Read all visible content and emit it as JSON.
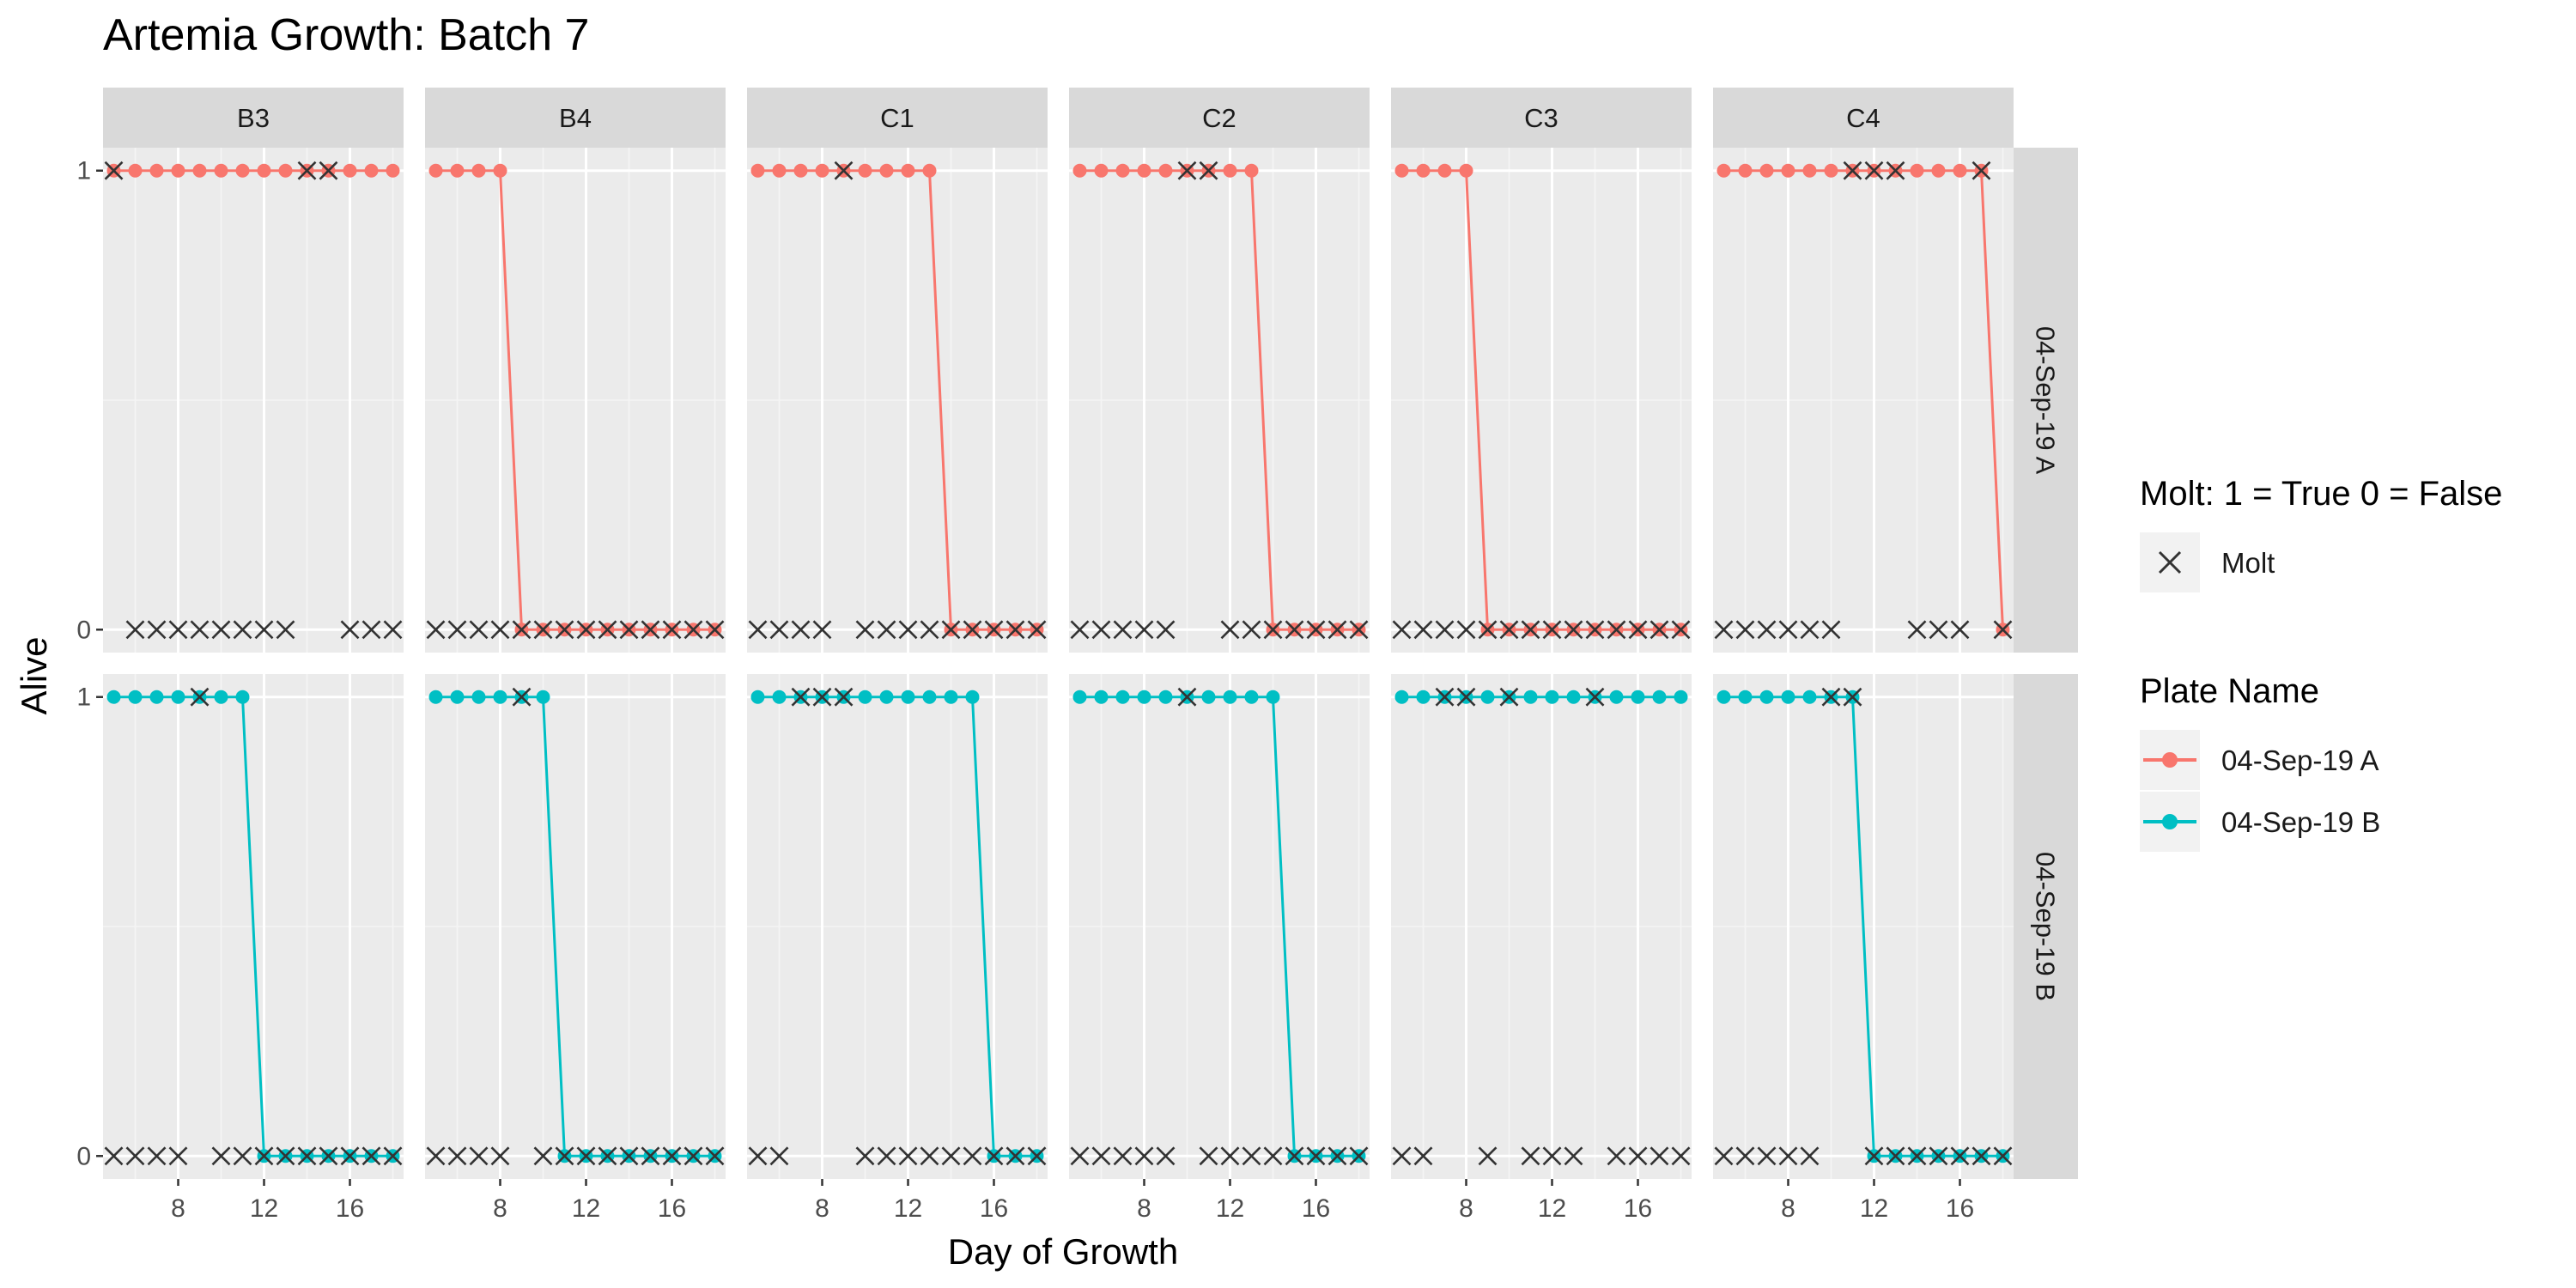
{
  "chart_data": {
    "type": "line",
    "title": "Artemia Growth: Batch 7",
    "xlabel": "Day of Growth",
    "ylabel": "Alive",
    "xlim": [
      4.5,
      18.5
    ],
    "ylim": [
      -0.05,
      1.05
    ],
    "x_ticks": [
      8,
      12,
      16
    ],
    "y_ticks": [
      0,
      1
    ],
    "columns": [
      "B3",
      "B4",
      "C1",
      "C2",
      "C3",
      "C4"
    ],
    "rows": [
      "04-Sep-19 A",
      "04-Sep-19 B"
    ],
    "days": [
      5,
      6,
      7,
      8,
      9,
      10,
      11,
      12,
      13,
      14,
      15,
      16,
      17,
      18
    ],
    "series_colors": {
      "04-Sep-19 A": "#F8766D",
      "04-Sep-19 B": "#00BFC4"
    },
    "legend_position": "right",
    "grid": true,
    "legend": {
      "molt_title": "Molt: 1 = True 0 = False",
      "molt_label": "Molt",
      "plate_title": "Plate Name",
      "plate_items": [
        "04-Sep-19 A",
        "04-Sep-19 B"
      ]
    },
    "panels": [
      {
        "row": "04-Sep-19 A",
        "col": "B3",
        "alive": [
          1,
          1,
          1,
          1,
          1,
          1,
          1,
          1,
          1,
          1,
          1,
          1,
          1,
          1
        ],
        "molt_days": [
          5,
          14,
          15
        ],
        "molt_zero_days": [
          6,
          7,
          8,
          9,
          10,
          11,
          12,
          13,
          16,
          17,
          18
        ]
      },
      {
        "row": "04-Sep-19 A",
        "col": "B4",
        "alive": [
          1,
          1,
          1,
          1,
          0,
          0,
          0,
          0,
          0,
          0,
          0,
          0,
          0,
          0
        ],
        "molt_days": [],
        "molt_zero_days": [
          5,
          6,
          7,
          8,
          9,
          10,
          11,
          12,
          13,
          14,
          15,
          16,
          17,
          18
        ]
      },
      {
        "row": "04-Sep-19 A",
        "col": "C1",
        "alive": [
          1,
          1,
          1,
          1,
          1,
          1,
          1,
          1,
          1,
          0,
          0,
          0,
          0,
          0
        ],
        "molt_days": [
          9
        ],
        "molt_zero_days": [
          5,
          6,
          7,
          8,
          10,
          11,
          12,
          13,
          14,
          15,
          16,
          17,
          18
        ]
      },
      {
        "row": "04-Sep-19 A",
        "col": "C2",
        "alive": [
          1,
          1,
          1,
          1,
          1,
          1,
          1,
          1,
          1,
          0,
          0,
          0,
          0,
          0
        ],
        "molt_days": [
          10,
          11
        ],
        "molt_zero_days": [
          5,
          6,
          7,
          8,
          9,
          12,
          13,
          14,
          15,
          16,
          17,
          18
        ]
      },
      {
        "row": "04-Sep-19 A",
        "col": "C3",
        "alive": [
          1,
          1,
          1,
          1,
          0,
          0,
          0,
          0,
          0,
          0,
          0,
          0,
          0,
          0
        ],
        "molt_days": [],
        "molt_zero_days": [
          5,
          6,
          7,
          8,
          9,
          10,
          11,
          12,
          13,
          14,
          15,
          16,
          17,
          18
        ]
      },
      {
        "row": "04-Sep-19 A",
        "col": "C4",
        "alive": [
          1,
          1,
          1,
          1,
          1,
          1,
          1,
          1,
          1,
          1,
          1,
          1,
          1,
          0
        ],
        "molt_days": [
          11,
          12,
          13,
          17
        ],
        "molt_zero_days": [
          5,
          6,
          7,
          8,
          9,
          10,
          14,
          15,
          16,
          18
        ]
      },
      {
        "row": "04-Sep-19 B",
        "col": "B3",
        "alive": [
          1,
          1,
          1,
          1,
          1,
          1,
          1,
          0,
          0,
          0,
          0,
          0,
          0,
          0
        ],
        "molt_days": [
          9
        ],
        "molt_zero_days": [
          5,
          6,
          7,
          8,
          10,
          11,
          12,
          13,
          14,
          15,
          16,
          17,
          18
        ]
      },
      {
        "row": "04-Sep-19 B",
        "col": "B4",
        "alive": [
          1,
          1,
          1,
          1,
          1,
          1,
          0,
          0,
          0,
          0,
          0,
          0,
          0,
          0
        ],
        "molt_days": [
          9
        ],
        "molt_zero_days": [
          5,
          6,
          7,
          8,
          10,
          11,
          12,
          13,
          14,
          15,
          16,
          17,
          18
        ]
      },
      {
        "row": "04-Sep-19 B",
        "col": "C1",
        "alive": [
          1,
          1,
          1,
          1,
          1,
          1,
          1,
          1,
          1,
          1,
          1,
          0,
          0,
          0
        ],
        "molt_days": [
          7,
          8,
          9
        ],
        "molt_zero_days": [
          5,
          6,
          10,
          11,
          12,
          13,
          14,
          15,
          16,
          17,
          18
        ]
      },
      {
        "row": "04-Sep-19 B",
        "col": "C2",
        "alive": [
          1,
          1,
          1,
          1,
          1,
          1,
          1,
          1,
          1,
          1,
          0,
          0,
          0,
          0
        ],
        "molt_days": [
          10
        ],
        "molt_zero_days": [
          5,
          6,
          7,
          8,
          9,
          11,
          12,
          13,
          14,
          15,
          16,
          17,
          18
        ]
      },
      {
        "row": "04-Sep-19 B",
        "col": "C3",
        "alive": [
          1,
          1,
          1,
          1,
          1,
          1,
          1,
          1,
          1,
          1,
          1,
          1,
          1,
          1
        ],
        "molt_days": [
          7,
          8,
          10,
          14
        ],
        "molt_zero_days": [
          5,
          6,
          9,
          11,
          12,
          13,
          15,
          16,
          17,
          18
        ]
      },
      {
        "row": "04-Sep-19 B",
        "col": "C4",
        "alive": [
          1,
          1,
          1,
          1,
          1,
          1,
          1,
          0,
          0,
          0,
          0,
          0,
          0,
          0
        ],
        "molt_days": [
          10,
          11
        ],
        "molt_zero_days": [
          5,
          6,
          7,
          8,
          9,
          12,
          13,
          14,
          15,
          16,
          17,
          18
        ]
      }
    ]
  }
}
